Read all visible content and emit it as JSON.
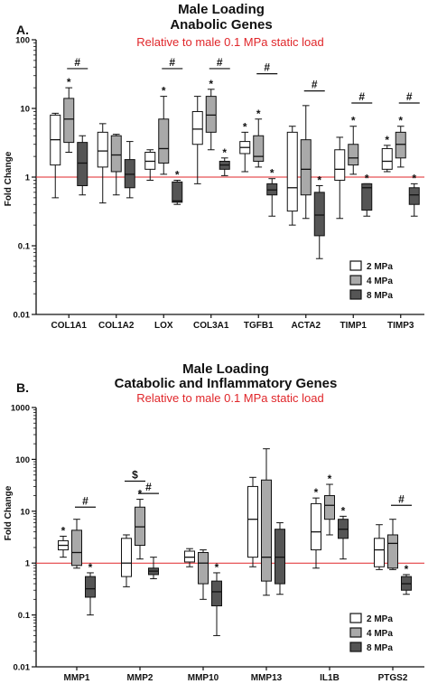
{
  "chart_data": [
    {
      "type": "box",
      "panel": "A.",
      "title_lines": [
        "Male Loading",
        "Anabolic Genes"
      ],
      "subtitle": "Relative to male 0.1 MPa static load",
      "ylabel": "Fold Change",
      "yscale": "log",
      "ylim": [
        0.01,
        100
      ],
      "ytick_labels": [
        "100",
        "10",
        "1",
        "0.1",
        "0.01"
      ],
      "reference_line": 1,
      "reference_color": "#e0262a",
      "legend": {
        "position": "bottom-right",
        "entries": [
          "2 MPa",
          "4 MPa",
          "8 MPa"
        ]
      },
      "series_colors": [
        "#ffffff",
        "#a9a9a9",
        "#555555"
      ],
      "categories": [
        "COL1A1",
        "COL1A2",
        "LOX",
        "COL3A1",
        "TGFB1",
        "ACTA2",
        "TIMP1",
        "TIMP3"
      ],
      "series": [
        {
          "name": "2 MPa",
          "boxes": [
            {
              "min": 0.5,
              "q1": 1.5,
              "median": 3.5,
              "q3": 8,
              "max": 8.5,
              "sig": ""
            },
            {
              "min": 0.42,
              "q1": 1.4,
              "median": 2.4,
              "q3": 4.5,
              "max": 6,
              "sig": ""
            },
            {
              "min": 0.9,
              "q1": 1.3,
              "median": 1.7,
              "q3": 2.3,
              "max": 2.5,
              "sig": ""
            },
            {
              "min": 0.8,
              "q1": 3,
              "median": 5,
              "q3": 9,
              "max": 15,
              "sig": ""
            },
            {
              "min": 1.2,
              "q1": 2.2,
              "median": 2.7,
              "q3": 3.3,
              "max": 4.5,
              "sig": "*"
            },
            {
              "min": 0.2,
              "q1": 0.32,
              "median": 0.7,
              "q3": 4.5,
              "max": 5.5,
              "sig": ""
            },
            {
              "min": 0.25,
              "q1": 0.9,
              "median": 1.3,
              "q3": 2.5,
              "max": 3.8,
              "sig": ""
            },
            {
              "min": 1.2,
              "q1": 1.3,
              "median": 1.7,
              "q3": 2.6,
              "max": 2.9,
              "sig": "*"
            }
          ]
        },
        {
          "name": "4 MPa",
          "boxes": [
            {
              "min": 2.3,
              "q1": 3.2,
              "median": 7,
              "q3": 14,
              "max": 20,
              "sig": "*"
            },
            {
              "min": 0.55,
              "q1": 1.2,
              "median": 2.1,
              "q3": 4,
              "max": 4.2,
              "sig": ""
            },
            {
              "min": 1.1,
              "q1": 1.6,
              "median": 2.6,
              "q3": 7,
              "max": 15,
              "sig": "*"
            },
            {
              "min": 2.5,
              "q1": 4.5,
              "median": 8,
              "q3": 15,
              "max": 19,
              "sig": "*"
            },
            {
              "min": 1.4,
              "q1": 1.7,
              "median": 2,
              "q3": 4,
              "max": 7,
              "sig": "*"
            },
            {
              "min": 0.25,
              "q1": 0.55,
              "median": 1.3,
              "q3": 3.5,
              "max": 11,
              "sig": ""
            },
            {
              "min": 1.1,
              "q1": 1.5,
              "median": 1.9,
              "q3": 3,
              "max": 5.5,
              "sig": "*"
            },
            {
              "min": 1.4,
              "q1": 1.9,
              "median": 3,
              "q3": 4.5,
              "max": 5.5,
              "sig": "*"
            }
          ]
        },
        {
          "name": "8 MPa",
          "boxes": [
            {
              "min": 0.55,
              "q1": 0.75,
              "median": 1.6,
              "q3": 3.2,
              "max": 4,
              "sig": ""
            },
            {
              "min": 0.5,
              "q1": 0.7,
              "median": 1.1,
              "q3": 1.8,
              "max": 3.3,
              "sig": ""
            },
            {
              "min": 0.4,
              "q1": 0.43,
              "median": 0.45,
              "q3": 0.85,
              "max": 0.9,
              "sig": "*"
            },
            {
              "min": 1.05,
              "q1": 1.3,
              "median": 1.5,
              "q3": 1.7,
              "max": 1.9,
              "sig": "*"
            },
            {
              "min": 0.27,
              "q1": 0.55,
              "median": 0.65,
              "q3": 0.8,
              "max": 0.95,
              "sig": "*"
            },
            {
              "min": 0.065,
              "q1": 0.14,
              "median": 0.28,
              "q3": 0.6,
              "max": 0.75,
              "sig": "*"
            },
            {
              "min": 0.27,
              "q1": 0.33,
              "median": 0.7,
              "q3": 0.8,
              "max": 0.8,
              "sig": "*"
            },
            {
              "min": 0.27,
              "q1": 0.4,
              "median": 0.55,
              "q3": 0.7,
              "max": 0.8,
              "sig": "*"
            }
          ]
        }
      ],
      "brackets": [
        {
          "label": "#",
          "category": 0,
          "from": 1,
          "to": 2,
          "y": 38
        },
        {
          "label": "#",
          "category": 2,
          "from": 1,
          "to": 2,
          "y": 38
        },
        {
          "label": "#",
          "category": 3,
          "from": 1,
          "to": 2,
          "y": 38
        },
        {
          "label": "#",
          "category": 4,
          "from": 1,
          "to": 2,
          "y": 32
        },
        {
          "label": "#",
          "category": 5,
          "from": 1,
          "to": 2,
          "y": 18
        },
        {
          "label": "#",
          "category": 6,
          "from": 1,
          "to": 2,
          "y": 12
        },
        {
          "label": "#",
          "category": 7,
          "from": 1,
          "to": 2,
          "y": 12
        }
      ]
    },
    {
      "type": "box",
      "panel": "B.",
      "title_lines": [
        "Male Loading",
        "Catabolic and Inflammatory Genes"
      ],
      "subtitle": "Relative to male 0.1 MPa static load",
      "ylabel": "Fold Change",
      "yscale": "log",
      "ylim": [
        0.01,
        1000
      ],
      "ytick_labels": [
        "1000",
        "100",
        "10",
        "1",
        "0.1",
        "0.01"
      ],
      "reference_line": 1,
      "reference_color": "#e0262a",
      "legend": {
        "position": "bottom-right",
        "entries": [
          "2 MPa",
          "4 MPa",
          "8 MPa"
        ]
      },
      "series_colors": [
        "#ffffff",
        "#a9a9a9",
        "#555555"
      ],
      "categories": [
        "MMP1",
        "MMP2",
        "MMP10",
        "MMP13",
        "IL1B",
        "PTGS2"
      ],
      "series": [
        {
          "name": "2 MPa",
          "boxes": [
            {
              "min": 1.3,
              "q1": 1.8,
              "median": 2.2,
              "q3": 2.7,
              "max": 3.3,
              "sig": "*"
            },
            {
              "min": 0.35,
              "q1": 0.55,
              "median": 1,
              "q3": 3,
              "max": 3.5,
              "sig": ""
            },
            {
              "min": 0.85,
              "q1": 1.05,
              "median": 1.3,
              "q3": 1.7,
              "max": 1.9,
              "sig": ""
            },
            {
              "min": 0.85,
              "q1": 1.3,
              "median": 7,
              "q3": 30,
              "max": 45,
              "sig": ""
            },
            {
              "min": 0.8,
              "q1": 1.8,
              "median": 4,
              "q3": 14,
              "max": 18,
              "sig": "*"
            },
            {
              "min": 0.75,
              "q1": 0.85,
              "median": 1.8,
              "q3": 3,
              "max": 5.5,
              "sig": ""
            }
          ]
        },
        {
          "name": "4 MPa",
          "boxes": [
            {
              "min": 0.8,
              "q1": 0.9,
              "median": 1.6,
              "q3": 4.3,
              "max": 7,
              "sig": ""
            },
            {
              "min": 1.2,
              "q1": 2.2,
              "median": 5,
              "q3": 12,
              "max": 17,
              "sig": "*"
            },
            {
              "min": 0.2,
              "q1": 0.4,
              "median": 1,
              "q3": 1.6,
              "max": 1.8,
              "sig": ""
            },
            {
              "min": 0.24,
              "q1": 0.45,
              "median": 1.3,
              "q3": 40,
              "max": 160,
              "sig": ""
            },
            {
              "min": 3.5,
              "q1": 7,
              "median": 13,
              "q3": 20,
              "max": 33,
              "sig": "*"
            },
            {
              "min": 0.75,
              "q1": 0.8,
              "median": 2.4,
              "q3": 3.5,
              "max": 7,
              "sig": ""
            }
          ]
        },
        {
          "name": "8 MPa",
          "boxes": [
            {
              "min": 0.1,
              "q1": 0.22,
              "median": 0.32,
              "q3": 0.55,
              "max": 0.65,
              "sig": "*"
            },
            {
              "min": 0.5,
              "q1": 0.6,
              "median": 0.7,
              "q3": 0.8,
              "max": 1.3,
              "sig": ""
            },
            {
              "min": 0.04,
              "q1": 0.15,
              "median": 0.28,
              "q3": 0.45,
              "max": 0.65,
              "sig": "*"
            },
            {
              "min": 0.25,
              "q1": 0.4,
              "median": 1.3,
              "q3": 4.5,
              "max": 6,
              "sig": ""
            },
            {
              "min": 1.2,
              "q1": 3,
              "median": 4.5,
              "q3": 7,
              "max": 8,
              "sig": "*"
            },
            {
              "min": 0.25,
              "q1": 0.3,
              "median": 0.4,
              "q3": 0.55,
              "max": 0.6,
              "sig": "*"
            }
          ]
        }
      ],
      "brackets": [
        {
          "label": "#",
          "category": 0,
          "from": 1,
          "to": 2,
          "y": 12
        },
        {
          "label": "$",
          "category": 1,
          "from": 0,
          "to": 1,
          "y": 38
        },
        {
          "label": "#",
          "category": 1,
          "from": 1,
          "to": 2,
          "y": 22
        },
        {
          "label": "#",
          "category": 5,
          "from": 1,
          "to": 2,
          "y": 13
        }
      ]
    }
  ]
}
